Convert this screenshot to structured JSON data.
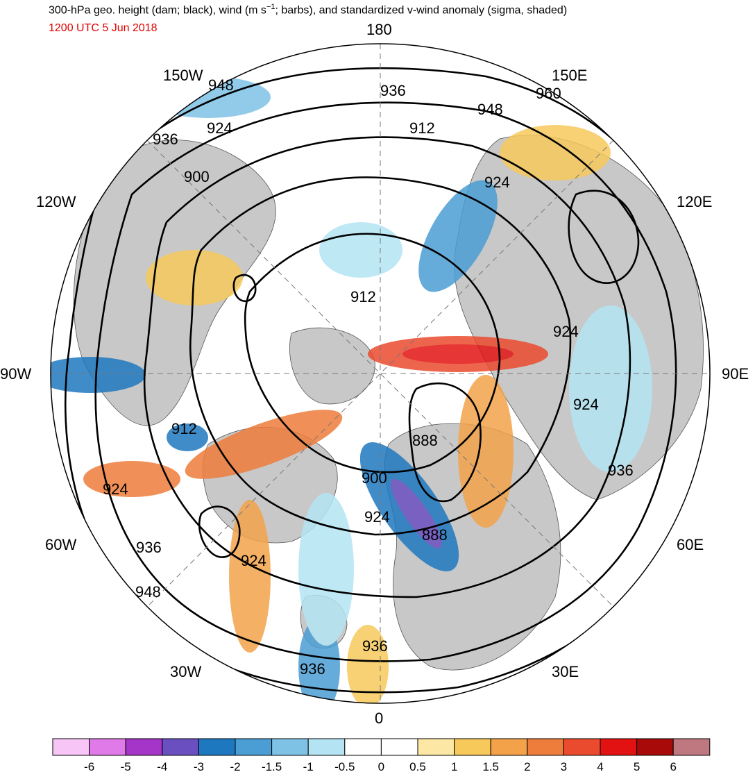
{
  "header": {
    "title_main": "300-hPa geo. height (dam; black), wind (m s",
    "title_exp": "−1",
    "title_rest": "; barbs), and standardized v-wind anomaly (sigma, shaded)",
    "valid_time": "1200 UTC 5 Jun 2018"
  },
  "map": {
    "projection": "north polar stereographic",
    "longitude_labels": {
      "n": "180",
      "s": "0",
      "e": "90E",
      "w": "90W",
      "ne150": "150E",
      "ne120": "120E",
      "se60": "60E",
      "se30": "30E",
      "nw150": "150W",
      "nw120": "120W",
      "sw60": "60W",
      "sw30": "30W"
    },
    "contour_labels": [
      "948",
      "936",
      "924",
      "900",
      "936",
      "912",
      "948",
      "960",
      "924",
      "912",
      "924",
      "924",
      "912",
      "924",
      "888",
      "900",
      "924",
      "888",
      "936",
      "936",
      "948",
      "924",
      "936",
      "936"
    ],
    "colors": {
      "land": "#c8c8c8",
      "ocean": "#ffffff",
      "contour": "#000000"
    }
  },
  "colorbar": {
    "ticks": [
      "-6",
      "-5",
      "-4",
      "-3",
      "-2",
      "-1.5",
      "-1",
      "-0.5",
      "0",
      "0.5",
      "1",
      "1.5",
      "2",
      "3",
      "4",
      "5",
      "6"
    ],
    "colors": [
      "#f7c6f7",
      "#e07ae8",
      "#a534c8",
      "#6a4fc0",
      "#1e78c0",
      "#4a9ed4",
      "#7ec2e6",
      "#b4e4f4",
      "#ffffff",
      "#ffffff",
      "#fce8a4",
      "#f6c95a",
      "#f3a24a",
      "#ee7c3a",
      "#ea4a2e",
      "#e21212",
      "#a80a0a",
      "#c07880"
    ]
  }
}
